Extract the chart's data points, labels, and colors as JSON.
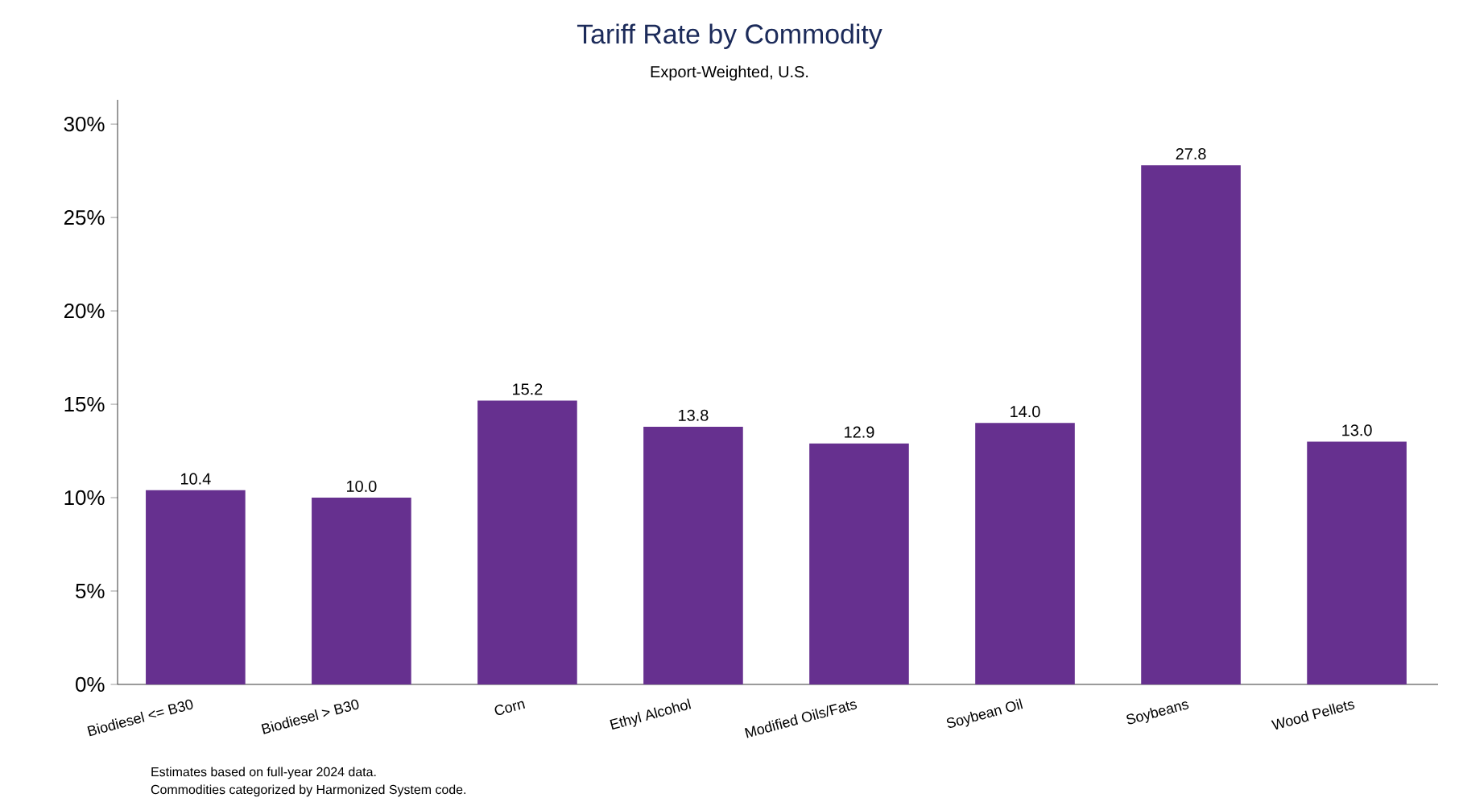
{
  "chart_data": {
    "type": "bar",
    "title": "Tariff Rate by Commodity",
    "subtitle": "Export-Weighted, U.S.",
    "categories": [
      "Biodiesel <= B30",
      "Biodiesel > B30",
      "Corn",
      "Ethyl Alcohol",
      "Modified Oils/Fats",
      "Soybean Oil",
      "Soybeans",
      "Wood Pellets"
    ],
    "values": [
      10.4,
      10.0,
      15.2,
      13.8,
      12.9,
      14.0,
      27.8,
      13.0
    ],
    "value_labels": [
      "10.4",
      "10.0",
      "15.2",
      "13.8",
      "12.9",
      "14.0",
      "27.8",
      "13.0"
    ],
    "color": "#66308f",
    "ylim": [
      0,
      31.3
    ],
    "yticks": [
      {
        "value": 0,
        "label": "0%"
      },
      {
        "value": 5,
        "label": "5%"
      },
      {
        "value": 10,
        "label": "10%"
      },
      {
        "value": 15,
        "label": "15%"
      },
      {
        "value": 20,
        "label": "20%"
      },
      {
        "value": 25,
        "label": "25%"
      },
      {
        "value": 30,
        "label": "30%"
      }
    ],
    "annotations": [
      "Estimates based on full-year 2024 data.",
      "Commodities categorized by Harmonized System code."
    ]
  }
}
